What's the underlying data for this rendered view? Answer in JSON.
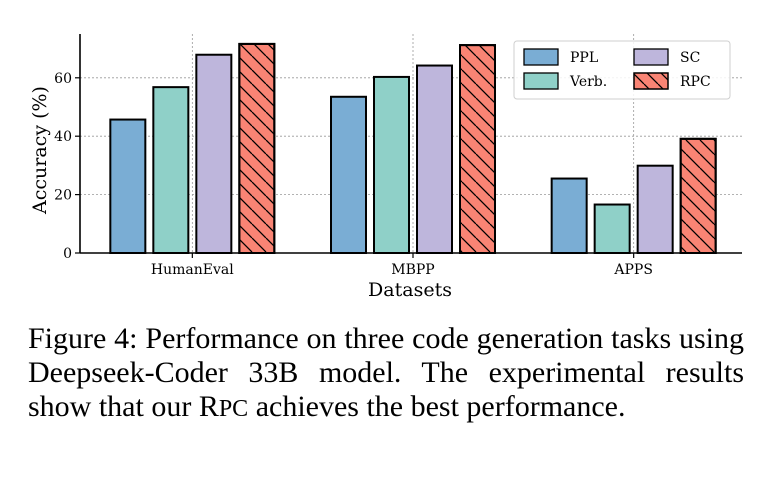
{
  "chart_data": {
    "type": "bar",
    "categories": [
      "HumanEval",
      "MBPP",
      "APPS"
    ],
    "series": [
      {
        "name": "PPL",
        "values": [
          45.7,
          53.5,
          25.5
        ],
        "color": "#7aadd4",
        "hatch": false
      },
      {
        "name": "Verb.",
        "values": [
          56.8,
          60.3,
          16.6
        ],
        "color": "#8fd0c8",
        "hatch": false
      },
      {
        "name": "SC",
        "values": [
          67.9,
          64.2,
          29.9
        ],
        "color": "#beb6dc",
        "hatch": false
      },
      {
        "name": "RPC",
        "values": [
          71.6,
          71.2,
          39.1
        ],
        "color": "#f98474",
        "hatch": true
      }
    ],
    "xlabel": "Datasets",
    "ylabel": "Accuracy (%)",
    "ylim": [
      0,
      75
    ],
    "yticks": [
      0,
      20,
      40,
      60
    ],
    "grid": true,
    "legend_position": "top-right",
    "legend_columns": 2
  },
  "caption": {
    "prefix": "Figure 4: Performance on three code generation tasks using Deepseek-Coder 33B model. The experimental results show that our R",
    "smallcaps": "PC",
    "suffix": " achieves the best performance."
  }
}
